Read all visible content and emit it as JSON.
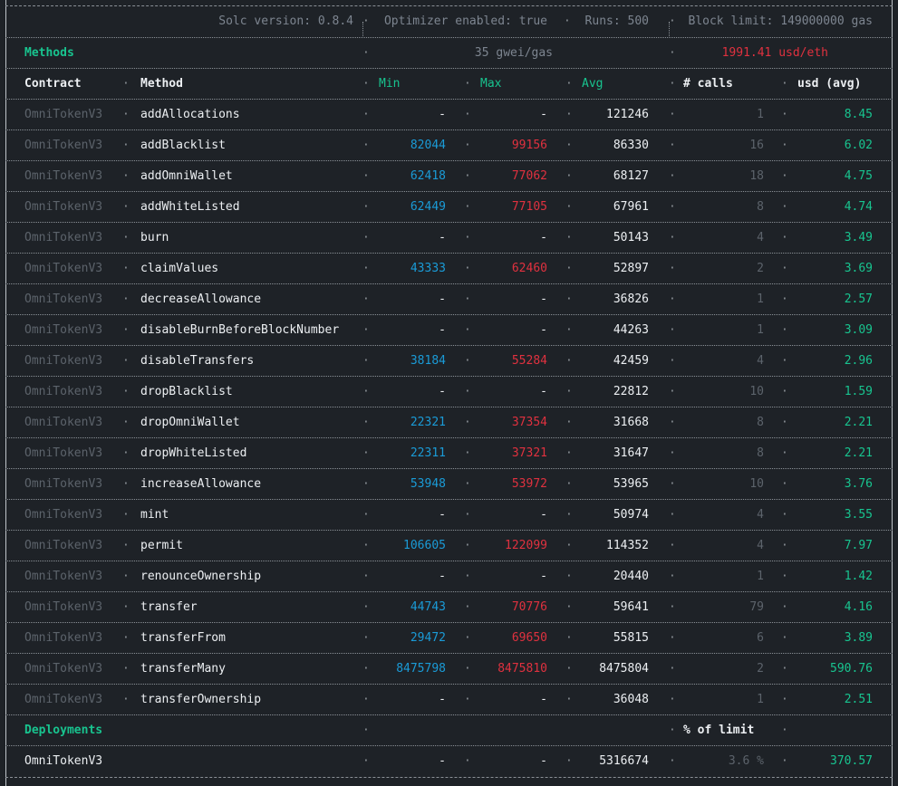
{
  "header": {
    "solc": "Solc version: 0.8.4",
    "optimizer": "Optimizer enabled: true",
    "runs": "Runs: 500",
    "block_limit": "Block limit: 149000000 gas"
  },
  "methods_bar": {
    "label": "Methods",
    "gwei": "35 gwei/gas",
    "rate": "1991.41 usd/eth"
  },
  "columns": {
    "contract": "Contract",
    "method": "Method",
    "min": "Min",
    "max": "Max",
    "avg": "Avg",
    "calls": "# calls",
    "usd": "usd (avg)"
  },
  "methods": [
    {
      "contract": "OmniTokenV3",
      "method": "addAllocations",
      "min": "-",
      "max": "-",
      "avg": "121246",
      "calls": "1",
      "usd": "8.45"
    },
    {
      "contract": "OmniTokenV3",
      "method": "addBlacklist",
      "min": "82044",
      "max": "99156",
      "avg": "86330",
      "calls": "16",
      "usd": "6.02"
    },
    {
      "contract": "OmniTokenV3",
      "method": "addOmniWallet",
      "min": "62418",
      "max": "77062",
      "avg": "68127",
      "calls": "18",
      "usd": "4.75"
    },
    {
      "contract": "OmniTokenV3",
      "method": "addWhiteListed",
      "min": "62449",
      "max": "77105",
      "avg": "67961",
      "calls": "8",
      "usd": "4.74"
    },
    {
      "contract": "OmniTokenV3",
      "method": "burn",
      "min": "-",
      "max": "-",
      "avg": "50143",
      "calls": "4",
      "usd": "3.49"
    },
    {
      "contract": "OmniTokenV3",
      "method": "claimValues",
      "min": "43333",
      "max": "62460",
      "avg": "52897",
      "calls": "2",
      "usd": "3.69"
    },
    {
      "contract": "OmniTokenV3",
      "method": "decreaseAllowance",
      "min": "-",
      "max": "-",
      "avg": "36826",
      "calls": "1",
      "usd": "2.57"
    },
    {
      "contract": "OmniTokenV3",
      "method": "disableBurnBeforeBlockNumber",
      "min": "-",
      "max": "-",
      "avg": "44263",
      "calls": "1",
      "usd": "3.09"
    },
    {
      "contract": "OmniTokenV3",
      "method": "disableTransfers",
      "min": "38184",
      "max": "55284",
      "avg": "42459",
      "calls": "4",
      "usd": "2.96"
    },
    {
      "contract": "OmniTokenV3",
      "method": "dropBlacklist",
      "min": "-",
      "max": "-",
      "avg": "22812",
      "calls": "10",
      "usd": "1.59"
    },
    {
      "contract": "OmniTokenV3",
      "method": "dropOmniWallet",
      "min": "22321",
      "max": "37354",
      "avg": "31668",
      "calls": "8",
      "usd": "2.21"
    },
    {
      "contract": "OmniTokenV3",
      "method": "dropWhiteListed",
      "min": "22311",
      "max": "37321",
      "avg": "31647",
      "calls": "8",
      "usd": "2.21"
    },
    {
      "contract": "OmniTokenV3",
      "method": "increaseAllowance",
      "min": "53948",
      "max": "53972",
      "avg": "53965",
      "calls": "10",
      "usd": "3.76"
    },
    {
      "contract": "OmniTokenV3",
      "method": "mint",
      "min": "-",
      "max": "-",
      "avg": "50974",
      "calls": "4",
      "usd": "3.55"
    },
    {
      "contract": "OmniTokenV3",
      "method": "permit",
      "min": "106605",
      "max": "122099",
      "avg": "114352",
      "calls": "4",
      "usd": "7.97"
    },
    {
      "contract": "OmniTokenV3",
      "method": "renounceOwnership",
      "min": "-",
      "max": "-",
      "avg": "20440",
      "calls": "1",
      "usd": "1.42"
    },
    {
      "contract": "OmniTokenV3",
      "method": "transfer",
      "min": "44743",
      "max": "70776",
      "avg": "59641",
      "calls": "79",
      "usd": "4.16"
    },
    {
      "contract": "OmniTokenV3",
      "method": "transferFrom",
      "min": "29472",
      "max": "69650",
      "avg": "55815",
      "calls": "6",
      "usd": "3.89"
    },
    {
      "contract": "OmniTokenV3",
      "method": "transferMany",
      "min": "8475798",
      "max": "8475810",
      "avg": "8475804",
      "calls": "2",
      "usd": "590.76"
    },
    {
      "contract": "OmniTokenV3",
      "method": "transferOwnership",
      "min": "-",
      "max": "-",
      "avg": "36048",
      "calls": "1",
      "usd": "2.51"
    }
  ],
  "deployments": {
    "label": "Deployments",
    "pct_header": "% of limit",
    "rows": [
      {
        "contract": "OmniTokenV3",
        "min": "-",
        "max": "-",
        "avg": "5316674",
        "pct": "3.6 %",
        "usd": "370.57"
      }
    ]
  },
  "colors": {
    "background": "#1e2227",
    "green": "#18c48f",
    "cyan": "#1a9bd7",
    "red": "#e0313f",
    "dim": "#5c636b"
  }
}
